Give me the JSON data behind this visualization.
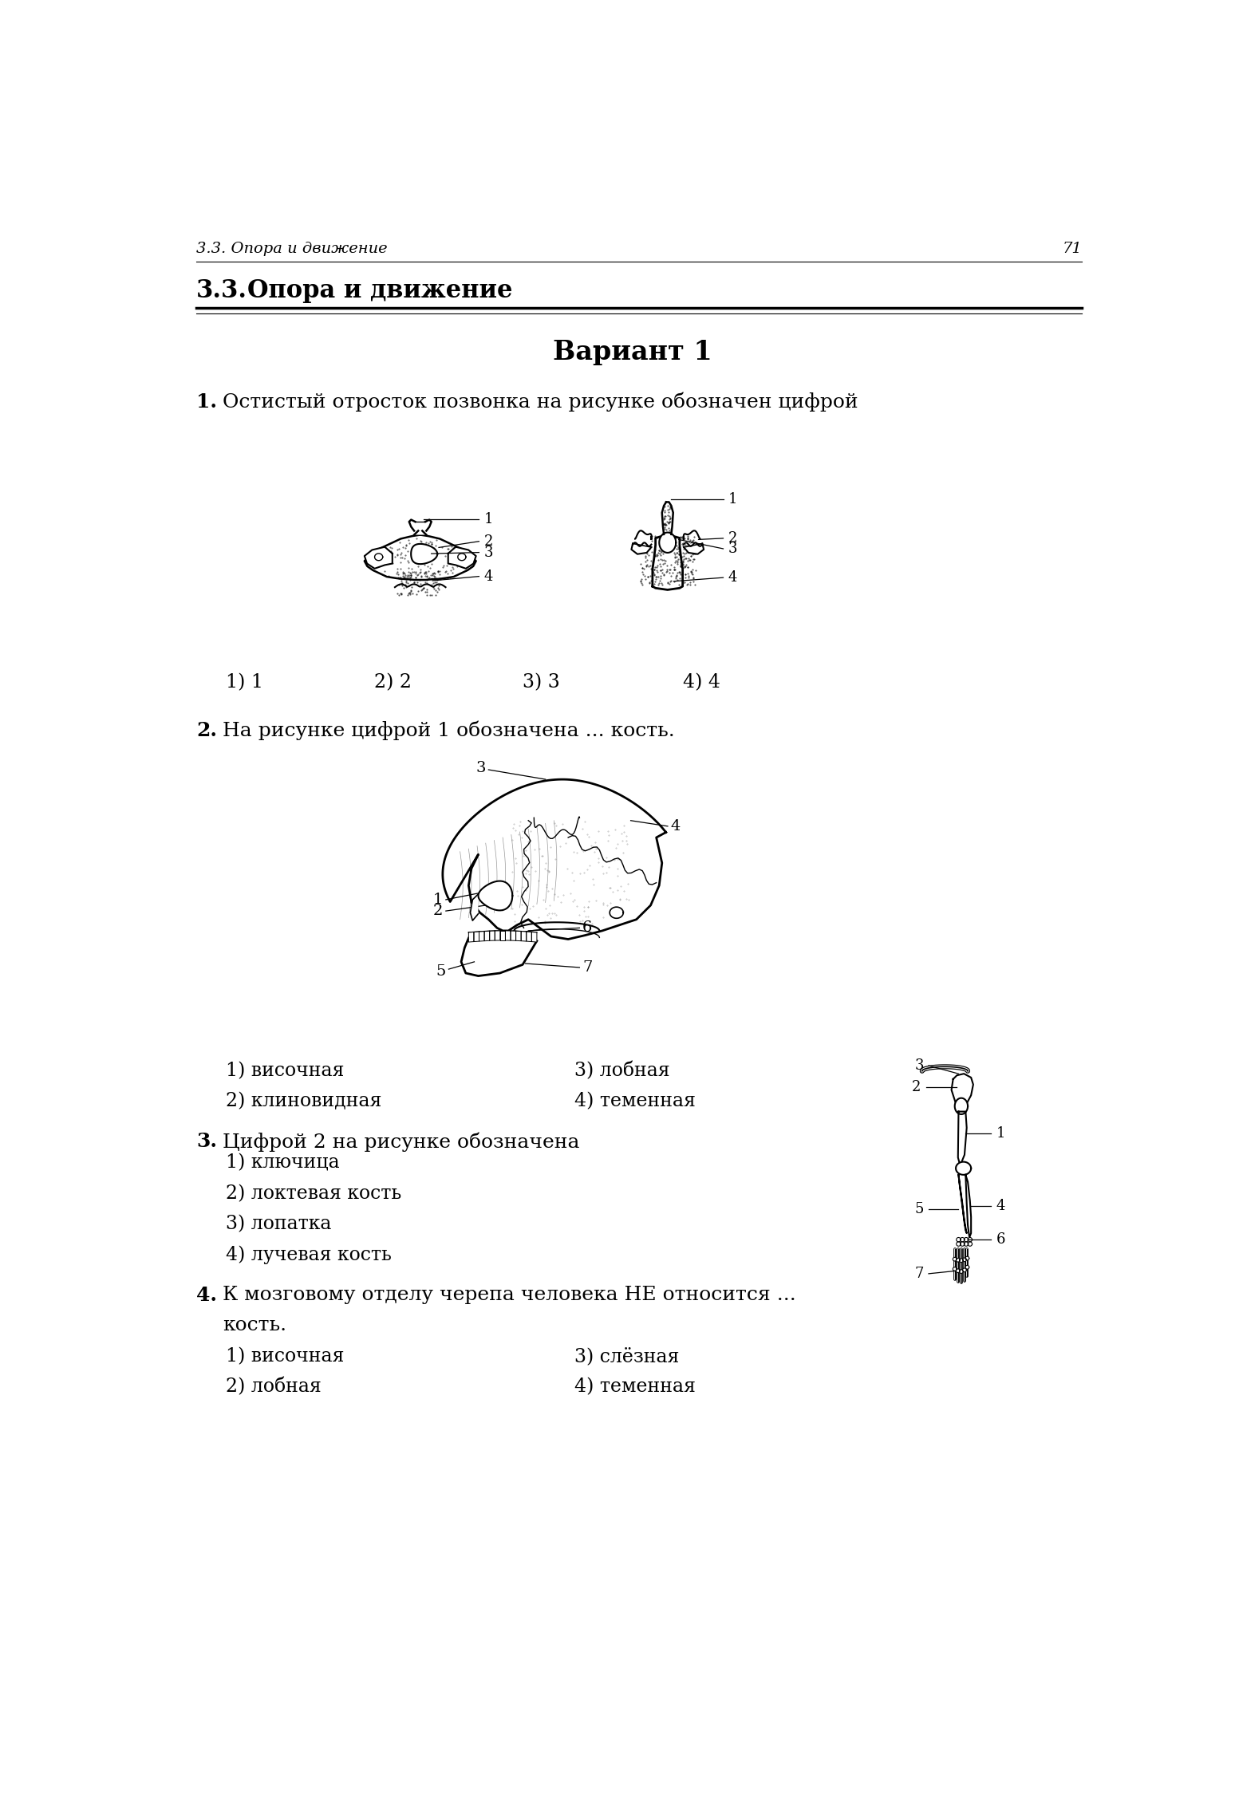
{
  "page_number": "71",
  "header_text": "3.3. Опора и движение",
  "section_bold": "3.3.",
  "section_title": "Опора и движение",
  "variant_title": "Вариант 1",
  "bg_color": "#ffffff",
  "text_color": "#000000",
  "q1_bold": "1.",
  "q1_text": "Остистый отросток позвонка на рисунке обозначен цифрой",
  "q1_answers": [
    "1) 1",
    "2) 2",
    "3) 3",
    "4) 4"
  ],
  "q2_bold": "2.",
  "q2_text": "На рисунке цифрой 1 обозначена ... кость.",
  "q2_ans_col1": [
    "1) височная",
    "2) клиновидная"
  ],
  "q2_ans_col2": [
    "3) лобная",
    "4) теменная"
  ],
  "q3_bold": "3.",
  "q3_text": "Цифрой 2 на рисунке обозначена",
  "q3_answers": [
    "1) ключица",
    "2) локтевая кость",
    "3) лопатка",
    "4) лучевая кость"
  ],
  "q4_bold": "4.",
  "q4_text": "К мозговому отделу черепа человека НЕ относится ...",
  "q4_text2": "кость.",
  "q4_ans_col1": [
    "1) височная",
    "2) лобная"
  ],
  "q4_ans_col2": [
    "3) слёзная",
    "4) теменная"
  ]
}
